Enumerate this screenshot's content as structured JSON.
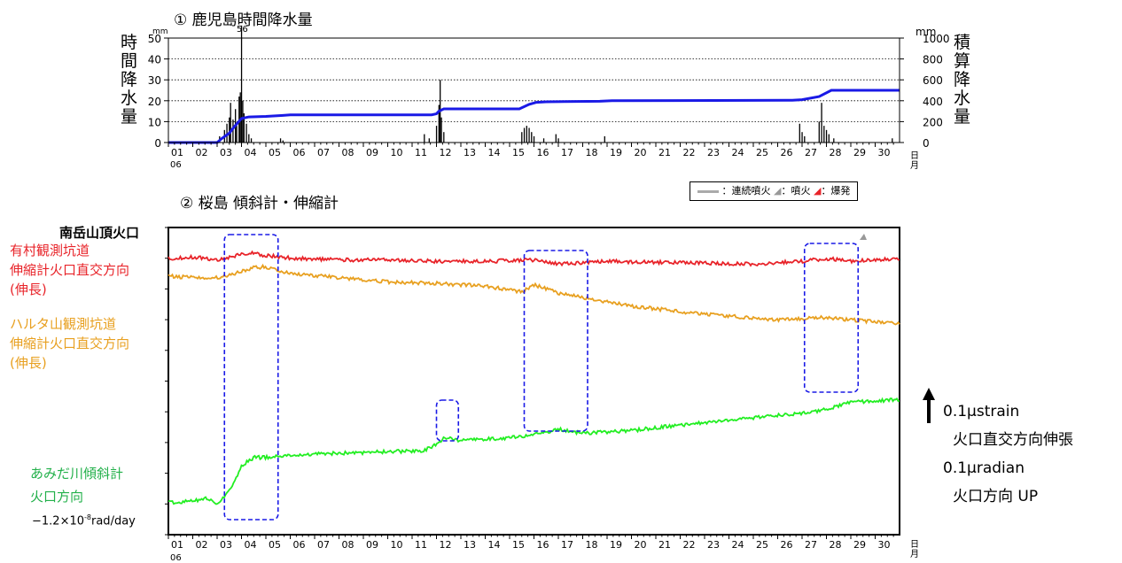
{
  "panel1": {
    "title": "① 鹿児島時間降水量",
    "left_unit": "mm",
    "right_unit": "mm",
    "left_axis_label": "時間降水量",
    "right_axis_label": "積算降水量",
    "peak_label": "56"
  },
  "panel2": {
    "title": "② 桜島 傾斜計・伸縮計",
    "legend": {
      "continuous": "：連続噴火",
      "eruption": "：噴火",
      "explosion": "：爆発"
    },
    "crater_label": "南岳山頂火口",
    "series_labels": {
      "red": [
        "有村観測坑道",
        "伸縮計火口直交方向",
        "(伸長)"
      ],
      "orange": [
        "ハルタ山観測坑道",
        "伸縮計火口直交方向",
        "(伸長)"
      ],
      "green": [
        "あみだ川傾斜計",
        "火口方向"
      ],
      "green_trend_prefix": "−1.2×10",
      "green_trend_exp": "-8",
      "green_trend_suffix": "rad/day"
    },
    "scale": [
      "0.1μstrain",
      "火口直交方向伸張",
      "0.1μradian",
      "火口方向 UP"
    ]
  },
  "axis": {
    "month": "06",
    "day_unit": [
      "日",
      "月"
    ],
    "days": [
      "01",
      "02",
      "03",
      "04",
      "05",
      "06",
      "07",
      "08",
      "09",
      "10",
      "11",
      "12",
      "13",
      "14",
      "15",
      "16",
      "17",
      "18",
      "19",
      "20",
      "21",
      "22",
      "23",
      "24",
      "25",
      "26",
      "27",
      "28",
      "29",
      "30"
    ]
  },
  "colors": {
    "red": "#e8242a",
    "orange": "#e8a020",
    "green": "#22ee22",
    "cumulative": "#1a1ae6",
    "box": "#1a1ae6"
  },
  "chart_data": [
    {
      "type": "bar",
      "title": "鹿児島時間降水量",
      "x_unit": "day (June)",
      "xlim": [
        1,
        31
      ],
      "ylim": [
        0,
        50
      ],
      "y_ticks": [
        0,
        10,
        20,
        30,
        40,
        50
      ],
      "y2lim": [
        0,
        1000
      ],
      "y2_ticks": [
        0,
        200,
        400,
        600,
        800,
        1000
      ],
      "ylabel": "時間降水量",
      "y2label": "積算降水量",
      "bars": [
        [
          3.1,
          3
        ],
        [
          3.3,
          6
        ],
        [
          3.4,
          9
        ],
        [
          3.5,
          12
        ],
        [
          3.55,
          19
        ],
        [
          3.65,
          11
        ],
        [
          3.75,
          16
        ],
        [
          3.8,
          8
        ],
        [
          3.9,
          22
        ],
        [
          3.95,
          24
        ],
        [
          4.0,
          56
        ],
        [
          4.05,
          20
        ],
        [
          4.1,
          14
        ],
        [
          4.2,
          9
        ],
        [
          4.3,
          4
        ],
        [
          4.4,
          2
        ],
        [
          5.6,
          2
        ],
        [
          5.7,
          1
        ],
        [
          11.5,
          4
        ],
        [
          11.7,
          2
        ],
        [
          12.0,
          8
        ],
        [
          12.1,
          18
        ],
        [
          12.15,
          30
        ],
        [
          12.2,
          12
        ],
        [
          12.3,
          5
        ],
        [
          15.5,
          5
        ],
        [
          15.6,
          7
        ],
        [
          15.7,
          8
        ],
        [
          15.8,
          7
        ],
        [
          15.9,
          5
        ],
        [
          16.0,
          3
        ],
        [
          16.4,
          2
        ],
        [
          16.9,
          4
        ],
        [
          17.0,
          2
        ],
        [
          18.9,
          3
        ],
        [
          26.9,
          9
        ],
        [
          27.0,
          5
        ],
        [
          27.1,
          3
        ],
        [
          27.7,
          10
        ],
        [
          27.8,
          19
        ],
        [
          27.9,
          8
        ],
        [
          28.0,
          6
        ],
        [
          28.1,
          4
        ],
        [
          28.3,
          2
        ],
        [
          30.7,
          2
        ]
      ],
      "series": [
        {
          "name": "積算降水量",
          "points": [
            [
              1,
              0
            ],
            [
              3.0,
              0
            ],
            [
              3.2,
              40
            ],
            [
              3.5,
              90
            ],
            [
              3.7,
              150
            ],
            [
              4.0,
              230
            ],
            [
              4.3,
              245
            ],
            [
              5.0,
              250
            ],
            [
              5.7,
              260
            ],
            [
              6.0,
              265
            ],
            [
              11.8,
              265
            ],
            [
              12.0,
              275
            ],
            [
              12.1,
              300
            ],
            [
              12.3,
              322
            ],
            [
              15.4,
              322
            ],
            [
              15.8,
              365
            ],
            [
              16.1,
              385
            ],
            [
              16.5,
              390
            ],
            [
              18.7,
              395
            ],
            [
              19.2,
              400
            ],
            [
              26.6,
              405
            ],
            [
              27.0,
              410
            ],
            [
              27.7,
              440
            ],
            [
              28.2,
              500
            ],
            [
              31,
              500
            ]
          ]
        }
      ]
    },
    {
      "type": "line",
      "title": "桜島 傾斜計・伸縮計",
      "x_unit": "day (June)",
      "xlim": [
        1,
        31
      ],
      "y_unit": "relative (0.1μstrain / 0.1μradian per scale arrow)",
      "series": [
        {
          "name": "有村観測坑道 伸縮計火口直交方向 (伸長)",
          "points": [
            [
              1,
              0.0
            ],
            [
              2,
              0.05
            ],
            [
              3,
              -0.05
            ],
            [
              3.5,
              0.05
            ],
            [
              4,
              0.15
            ],
            [
              4.5,
              0.2
            ],
            [
              5,
              0.1
            ],
            [
              6,
              0.02
            ],
            [
              8,
              -0.05
            ],
            [
              10,
              -0.05
            ],
            [
              12,
              -0.1
            ],
            [
              14,
              -0.1
            ],
            [
              16,
              -0.05
            ],
            [
              17,
              -0.2
            ],
            [
              19,
              -0.1
            ],
            [
              22,
              -0.15
            ],
            [
              25,
              -0.2
            ],
            [
              27,
              -0.1
            ],
            [
              28,
              0.0
            ],
            [
              29,
              -0.1
            ],
            [
              31,
              0.0
            ]
          ]
        },
        {
          "name": "ハルタ山観測坑道 伸縮計火口直交方向 (伸長)",
          "points": [
            [
              1,
              -0.35
            ],
            [
              2,
              -0.4
            ],
            [
              3,
              -0.4
            ],
            [
              3.6,
              -0.3
            ],
            [
              4.5,
              -0.05
            ],
            [
              5,
              -0.02
            ],
            [
              6,
              -0.25
            ],
            [
              8,
              -0.4
            ],
            [
              10,
              -0.55
            ],
            [
              12,
              -0.6
            ],
            [
              14,
              -0.7
            ],
            [
              15.5,
              -0.9
            ],
            [
              16,
              -0.65
            ],
            [
              17,
              -0.95
            ],
            [
              18,
              -1.1
            ],
            [
              20,
              -1.4
            ],
            [
              22,
              -1.6
            ],
            [
              24,
              -1.75
            ],
            [
              26,
              -1.9
            ],
            [
              28,
              -1.8
            ],
            [
              29,
              -1.9
            ],
            [
              31,
              -2.0
            ]
          ]
        },
        {
          "name": "あみだ川傾斜計 火口方向",
          "points": [
            [
              1,
              -5.6
            ],
            [
              2,
              -5.55
            ],
            [
              2.5,
              -5.45
            ],
            [
              3,
              -5.6
            ],
            [
              3.5,
              -5.2
            ],
            [
              4,
              -4.3
            ],
            [
              4.5,
              -4.0
            ],
            [
              5,
              -4.0
            ],
            [
              6,
              -3.9
            ],
            [
              8,
              -3.85
            ],
            [
              10,
              -3.8
            ],
            [
              11.5,
              -3.75
            ],
            [
              12,
              -3.55
            ],
            [
              12.3,
              -3.3
            ],
            [
              13,
              -3.4
            ],
            [
              15,
              -3.3
            ],
            [
              16,
              -3.2
            ],
            [
              17,
              -3.0
            ],
            [
              18,
              -3.15
            ],
            [
              20,
              -3.05
            ],
            [
              22,
              -2.85
            ],
            [
              24,
              -2.7
            ],
            [
              26,
              -2.5
            ],
            [
              27,
              -2.45
            ],
            [
              28,
              -2.3
            ],
            [
              29,
              -2.05
            ],
            [
              31,
              -1.95
            ]
          ]
        }
      ]
    }
  ]
}
